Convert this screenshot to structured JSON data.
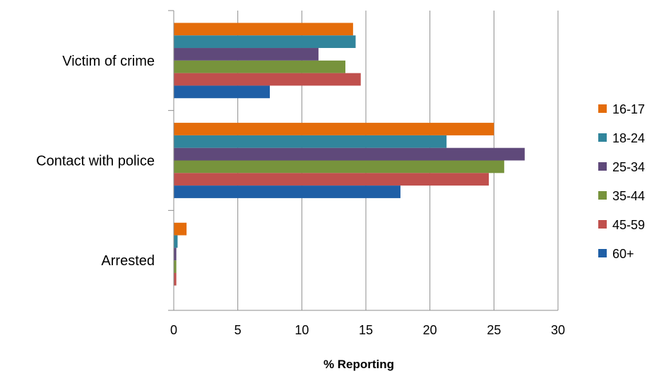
{
  "chart_data": {
    "type": "bar",
    "orientation": "horizontal",
    "title": "",
    "xlabel": "% Reporting",
    "ylabel": "",
    "xlim": [
      0,
      30
    ],
    "xticks": [
      0,
      5,
      10,
      15,
      20,
      25,
      30
    ],
    "grid": "vertical",
    "legend_position": "right",
    "categories": [
      "Victim of crime",
      "Contact with police",
      "Arrested"
    ],
    "series": [
      {
        "name": "16-17",
        "color": "#E46C0A",
        "values": [
          14.0,
          25.0,
          1.0
        ]
      },
      {
        "name": "18-24",
        "color": "#31859C",
        "values": [
          14.2,
          21.3,
          0.3
        ]
      },
      {
        "name": "25-34",
        "color": "#5F497A",
        "values": [
          11.3,
          27.4,
          0.2
        ]
      },
      {
        "name": "35-44",
        "color": "#77933C",
        "values": [
          13.4,
          25.8,
          0.2
        ]
      },
      {
        "name": "45-59",
        "color": "#C0504D",
        "values": [
          14.6,
          24.6,
          0.2
        ]
      },
      {
        "name": "60+",
        "color": "#1F5FA6",
        "values": [
          7.5,
          17.7,
          0.0
        ]
      }
    ]
  }
}
